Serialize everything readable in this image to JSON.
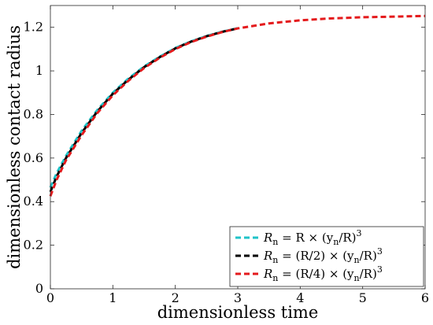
{
  "chart_data": {
    "type": "line",
    "xlabel": "dimensionless time",
    "ylabel": "dimensionless contact radius",
    "xlim": [
      0,
      6
    ],
    "ylim": [
      0,
      1.3
    ],
    "xticks": [
      "0",
      "1",
      "2",
      "3",
      "4",
      "5",
      "6"
    ],
    "yticks": [
      "0",
      "0.2",
      "0.4",
      "0.6",
      "0.8",
      "1",
      "1.2"
    ],
    "xtick_values": [
      0,
      1,
      2,
      3,
      4,
      5,
      6
    ],
    "ytick_values": [
      0,
      0.2,
      0.4,
      0.6,
      0.8,
      1.0,
      1.2
    ],
    "legend_position": "bottom-right",
    "grid": false,
    "series": [
      {
        "name": "R_n = R × (y_n/R)^3",
        "legend_parts": [
          "R",
          "n",
          " = R × (y",
          "n",
          "/R)",
          "3"
        ],
        "color": "#1fc3c8",
        "style": "dashed",
        "x": [
          0,
          0.1,
          0.25,
          0.5,
          0.75,
          1.0,
          1.25,
          1.5,
          1.75,
          2.0,
          2.25,
          2.5,
          2.75,
          3.0
        ],
        "y": [
          0.465,
          0.53,
          0.61,
          0.725,
          0.82,
          0.9,
          0.965,
          1.02,
          1.065,
          1.105,
          1.135,
          1.16,
          1.18,
          1.196
        ]
      },
      {
        "name": "R_n = (R/2) × (y_n/R)^3",
        "legend_parts": [
          "R",
          "n",
          " = (R/2) × (y",
          "n",
          "/R)",
          "3"
        ],
        "color": "#000000",
        "style": "dashed",
        "x": [
          0,
          0.1,
          0.25,
          0.5,
          0.75,
          1.0,
          1.25,
          1.5,
          1.75,
          2.0,
          2.25,
          2.5,
          2.75,
          3.0
        ],
        "y": [
          0.445,
          0.515,
          0.6,
          0.715,
          0.813,
          0.895,
          0.96,
          1.017,
          1.063,
          1.103,
          1.134,
          1.159,
          1.179,
          1.195
        ]
      },
      {
        "name": "R_n = (R/4) × (y_n/R)^3",
        "legend_parts": [
          "R",
          "n",
          " = (R/4) × (y",
          "n",
          "/R)",
          "3"
        ],
        "color": "#e41a1c",
        "style": "dashed",
        "x": [
          0,
          0.1,
          0.25,
          0.5,
          0.75,
          1.0,
          1.25,
          1.5,
          1.75,
          2.0,
          2.25,
          2.5,
          2.75,
          3.0,
          3.5,
          4.0,
          4.5,
          5.0,
          5.5,
          6.0
        ],
        "y": [
          0.425,
          0.5,
          0.59,
          0.705,
          0.806,
          0.888,
          0.955,
          1.013,
          1.06,
          1.1,
          1.132,
          1.157,
          1.178,
          1.195,
          1.218,
          1.232,
          1.241,
          1.246,
          1.249,
          1.252
        ]
      }
    ]
  }
}
